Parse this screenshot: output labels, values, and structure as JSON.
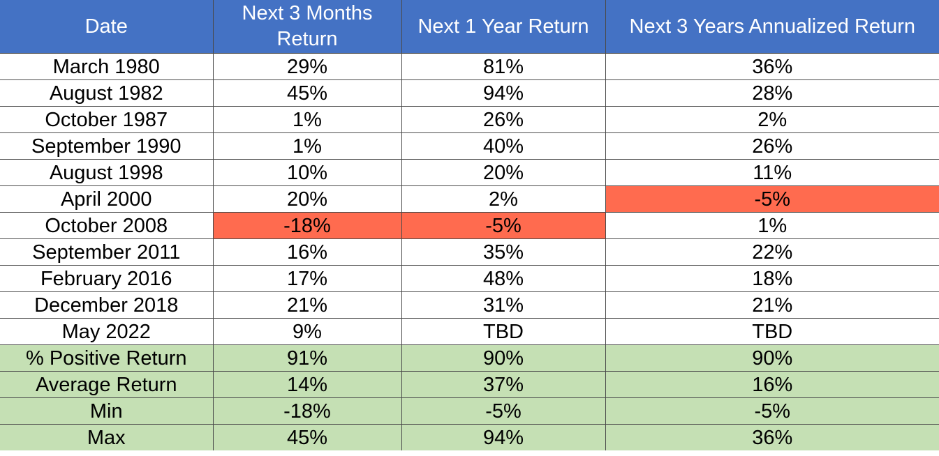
{
  "colors": {
    "header": "#4472c4",
    "header_text": "#ffffff",
    "negative_highlight": "#ff6b4f",
    "summary": "#c5e0b4",
    "body": "#ffffff",
    "border": "#4a4a4a"
  },
  "chart_data": {
    "type": "table",
    "columns": [
      "Date",
      "Next 3 Months Return",
      "Next 1 Year Return",
      "Next 3 Years Annualized Return"
    ],
    "rows": [
      {
        "cells": [
          "March 1980",
          "29%",
          "81%",
          "36%"
        ],
        "highlight": [
          false,
          false,
          false,
          false
        ],
        "summary": false
      },
      {
        "cells": [
          "August 1982",
          "45%",
          "94%",
          "28%"
        ],
        "highlight": [
          false,
          false,
          false,
          false
        ],
        "summary": false
      },
      {
        "cells": [
          "October 1987",
          "1%",
          "26%",
          "2%"
        ],
        "highlight": [
          false,
          false,
          false,
          false
        ],
        "summary": false
      },
      {
        "cells": [
          "September 1990",
          "1%",
          "40%",
          "26%"
        ],
        "highlight": [
          false,
          false,
          false,
          false
        ],
        "summary": false
      },
      {
        "cells": [
          "August 1998",
          "10%",
          "20%",
          "11%"
        ],
        "highlight": [
          false,
          false,
          false,
          false
        ],
        "summary": false
      },
      {
        "cells": [
          "April 2000",
          "20%",
          "2%",
          "-5%"
        ],
        "highlight": [
          false,
          false,
          false,
          true
        ],
        "summary": false
      },
      {
        "cells": [
          "October 2008",
          "-18%",
          "-5%",
          "1%"
        ],
        "highlight": [
          false,
          true,
          true,
          false
        ],
        "summary": false
      },
      {
        "cells": [
          "September 2011",
          "16%",
          "35%",
          "22%"
        ],
        "highlight": [
          false,
          false,
          false,
          false
        ],
        "summary": false
      },
      {
        "cells": [
          "February 2016",
          "17%",
          "48%",
          "18%"
        ],
        "highlight": [
          false,
          false,
          false,
          false
        ],
        "summary": false
      },
      {
        "cells": [
          "December 2018",
          "21%",
          "31%",
          "21%"
        ],
        "highlight": [
          false,
          false,
          false,
          false
        ],
        "summary": false
      },
      {
        "cells": [
          "May 2022",
          "9%",
          "TBD",
          "TBD"
        ],
        "highlight": [
          false,
          false,
          false,
          false
        ],
        "summary": false
      },
      {
        "cells": [
          "% Positive Return",
          "91%",
          "90%",
          "90%"
        ],
        "highlight": [
          false,
          false,
          false,
          false
        ],
        "summary": true
      },
      {
        "cells": [
          "Average Return",
          "14%",
          "37%",
          "16%"
        ],
        "highlight": [
          false,
          false,
          false,
          false
        ],
        "summary": true
      },
      {
        "cells": [
          "Min",
          "-18%",
          "-5%",
          "-5%"
        ],
        "highlight": [
          false,
          false,
          false,
          false
        ],
        "summary": true
      },
      {
        "cells": [
          "Max",
          "45%",
          "94%",
          "36%"
        ],
        "highlight": [
          false,
          false,
          false,
          false
        ],
        "summary": true
      }
    ]
  }
}
